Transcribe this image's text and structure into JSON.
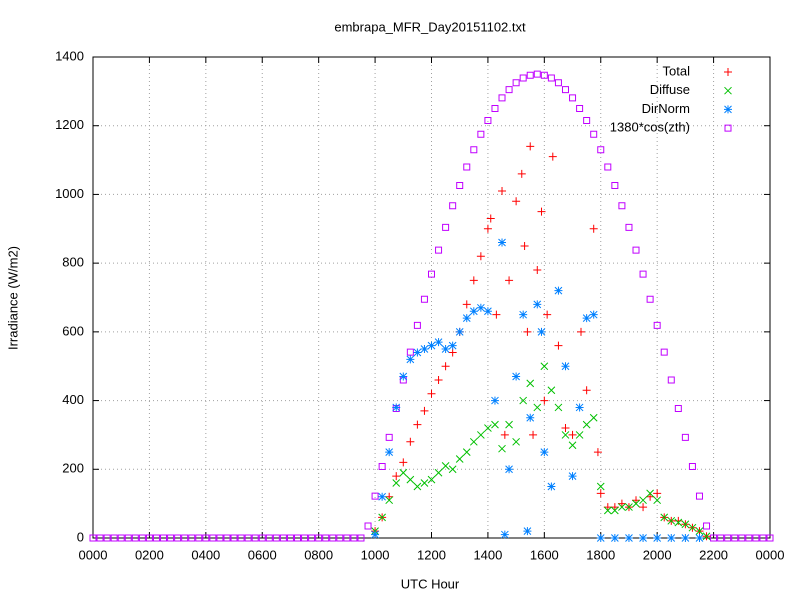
{
  "chart_data": {
    "type": "scatter",
    "title": "embrapa_MFR_Day20151102.txt",
    "xlabel": "UTC Hour",
    "ylabel": "Irradiance (W/m2)",
    "xlim": [
      0,
      24
    ],
    "ylim": [
      0,
      1400
    ],
    "xticks": [
      {
        "value": 0,
        "label": "0000"
      },
      {
        "value": 2,
        "label": "0200"
      },
      {
        "value": 4,
        "label": "0400"
      },
      {
        "value": 6,
        "label": "0600"
      },
      {
        "value": 8,
        "label": "0800"
      },
      {
        "value": 10,
        "label": "1000"
      },
      {
        "value": 12,
        "label": "1200"
      },
      {
        "value": 14,
        "label": "1400"
      },
      {
        "value": 16,
        "label": "1600"
      },
      {
        "value": 18,
        "label": "1800"
      },
      {
        "value": 20,
        "label": "2000"
      },
      {
        "value": 22,
        "label": "2200"
      },
      {
        "value": 24,
        "label": "0000"
      }
    ],
    "yticks": [
      0,
      200,
      400,
      600,
      800,
      1000,
      1200,
      1400
    ],
    "grid": true,
    "legend": "top-right",
    "series": [
      {
        "name": "Total",
        "color": "#ff0000",
        "marker": "plus",
        "x": [
          10,
          10.25,
          10.5,
          10.75,
          11,
          11.25,
          11.5,
          11.75,
          12,
          12.25,
          12.5,
          12.75,
          13,
          13.25,
          13.5,
          13.75,
          14,
          14.1,
          14.3,
          14.5,
          14.6,
          14.75,
          15,
          15.2,
          15.3,
          15.4,
          15.5,
          15.6,
          15.75,
          15.9,
          16,
          16.1,
          16.3,
          16.5,
          16.75,
          17,
          17.3,
          17.5,
          17.75,
          17.9,
          18,
          18.25,
          18.5,
          18.75,
          19,
          19.25,
          19.5,
          19.75,
          20,
          20.25,
          20.5,
          20.75,
          21,
          21.25,
          21.5,
          21.75
        ],
        "values": [
          20,
          60,
          120,
          180,
          220,
          280,
          330,
          370,
          420,
          460,
          500,
          540,
          600,
          680,
          750,
          820,
          900,
          930,
          650,
          1010,
          300,
          750,
          980,
          1060,
          850,
          600,
          1140,
          300,
          780,
          950,
          400,
          650,
          1110,
          560,
          320,
          300,
          600,
          430,
          900,
          250,
          130,
          90,
          90,
          100,
          90,
          110,
          90,
          120,
          130,
          60,
          50,
          50,
          40,
          30,
          20,
          5
        ]
      },
      {
        "name": "Diffuse",
        "color": "#00c000",
        "marker": "cross",
        "x": [
          10,
          10.25,
          10.5,
          10.75,
          11,
          11.25,
          11.5,
          11.75,
          12,
          12.25,
          12.5,
          12.75,
          13,
          13.25,
          13.5,
          13.75,
          14,
          14.25,
          14.5,
          14.75,
          15,
          15.25,
          15.5,
          15.75,
          16,
          16.25,
          16.5,
          16.75,
          17,
          17.25,
          17.5,
          17.75,
          18,
          18.25,
          18.5,
          18.75,
          19,
          19.25,
          19.5,
          19.75,
          20,
          20.25,
          20.5,
          20.75,
          21,
          21.25,
          21.5,
          21.75
        ],
        "values": [
          20,
          60,
          110,
          160,
          190,
          170,
          150,
          160,
          170,
          190,
          210,
          200,
          230,
          250,
          280,
          300,
          320,
          330,
          260,
          330,
          280,
          400,
          450,
          380,
          500,
          430,
          380,
          300,
          270,
          300,
          330,
          350,
          150,
          80,
          80,
          90,
          90,
          100,
          110,
          130,
          110,
          60,
          50,
          45,
          40,
          30,
          20,
          5
        ]
      },
      {
        "name": "DirNorm",
        "color": "#0080ff",
        "marker": "star",
        "x": [
          10,
          10.25,
          10.5,
          10.75,
          11,
          11.25,
          11.5,
          11.75,
          12,
          12.25,
          12.5,
          12.75,
          13,
          13.25,
          13.5,
          13.75,
          14,
          14.25,
          14.5,
          14.6,
          14.75,
          15,
          15.25,
          15.4,
          15.5,
          15.75,
          15.9,
          16,
          16.25,
          16.5,
          16.75,
          17,
          17.25,
          17.5,
          17.75,
          18,
          18.5,
          19,
          19.5,
          20,
          20.5,
          21,
          21.5
        ],
        "values": [
          10,
          120,
          250,
          380,
          470,
          520,
          540,
          550,
          560,
          570,
          550,
          560,
          600,
          640,
          660,
          670,
          660,
          400,
          860,
          10,
          200,
          470,
          650,
          20,
          350,
          680,
          600,
          250,
          150,
          720,
          500,
          180,
          380,
          640,
          650,
          0,
          0,
          0,
          0,
          0,
          0,
          0,
          0
        ]
      },
      {
        "name": "1380*cos(zth)",
        "color": "#c000ff",
        "marker": "square",
        "x": [
          0,
          0.25,
          0.5,
          0.75,
          1,
          1.25,
          1.5,
          1.75,
          2,
          2.25,
          2.5,
          2.75,
          3,
          3.25,
          3.5,
          3.75,
          4,
          4.25,
          4.5,
          4.75,
          5,
          5.25,
          5.5,
          5.75,
          6,
          6.25,
          6.5,
          6.75,
          7,
          7.25,
          7.5,
          7.75,
          8,
          8.25,
          8.5,
          8.75,
          9,
          9.25,
          9.5,
          9.75,
          10,
          10.25,
          10.5,
          10.75,
          11,
          11.25,
          11.5,
          11.75,
          12,
          12.25,
          12.5,
          12.75,
          13,
          13.25,
          13.5,
          13.75,
          14,
          14.25,
          14.5,
          14.75,
          15,
          15.25,
          15.5,
          15.75,
          16,
          16.25,
          16.5,
          16.75,
          17,
          17.25,
          17.5,
          17.75,
          18,
          18.25,
          18.5,
          18.75,
          19,
          19.25,
          19.5,
          19.75,
          20,
          20.25,
          20.5,
          20.75,
          21,
          21.25,
          21.5,
          21.75,
          22,
          22.25,
          22.5,
          22.75,
          23,
          23.25,
          23.5,
          23.75,
          24
        ],
        "values": [
          0,
          0,
          0,
          0,
          0,
          0,
          0,
          0,
          0,
          0,
          0,
          0,
          0,
          0,
          0,
          0,
          0,
          0,
          0,
          0,
          0,
          0,
          0,
          0,
          0,
          0,
          0,
          0,
          0,
          0,
          0,
          0,
          0,
          0,
          0,
          0,
          0,
          0,
          0,
          35,
          122,
          208,
          293,
          377,
          460,
          541,
          619,
          695,
          768,
          838,
          904,
          967,
          1026,
          1080,
          1130,
          1175,
          1215,
          1250,
          1281,
          1305,
          1325,
          1339,
          1347,
          1350,
          1347,
          1339,
          1325,
          1305,
          1281,
          1250,
          1215,
          1175,
          1130,
          1080,
          1026,
          967,
          904,
          838,
          768,
          695,
          619,
          541,
          460,
          377,
          293,
          208,
          122,
          35,
          0,
          0,
          0,
          0,
          0,
          0,
          0,
          0,
          0
        ]
      }
    ]
  }
}
